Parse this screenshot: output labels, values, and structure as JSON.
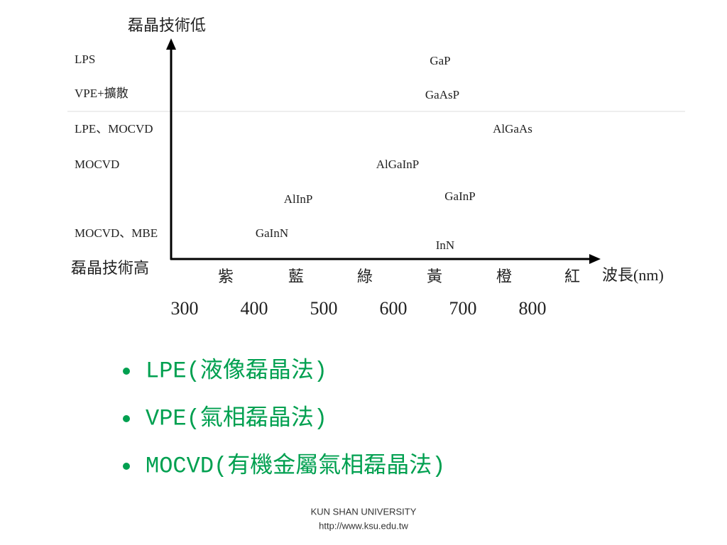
{
  "diagram": {
    "top_label": "磊晶技術低",
    "bottom_label": "磊晶技術高",
    "axis_label": "波長(nm)",
    "methods": [
      "LPS",
      "VPE+擴散",
      "LPE、MOCVD",
      "MOCVD",
      "MOCVD、MBE"
    ],
    "materials": [
      "GaP",
      "GaAsP",
      "AlGaAs",
      "AlGaInP",
      "AlInP",
      "GaInP",
      "GaInN",
      "InN"
    ],
    "colors": [
      "紫",
      "藍",
      "綠",
      "黃",
      "橙",
      "紅"
    ],
    "wavelengths": [
      300,
      400,
      500,
      600,
      700,
      800
    ]
  },
  "bullets": [
    "LPE(液像磊晶法)",
    "VPE(氣相磊晶法)",
    "MOCVD(有機金屬氣相磊晶法)"
  ],
  "footer": {
    "line1": "KUN SHAN UNIVERSITY",
    "line2": "http://www.ksu.edu.tw"
  }
}
